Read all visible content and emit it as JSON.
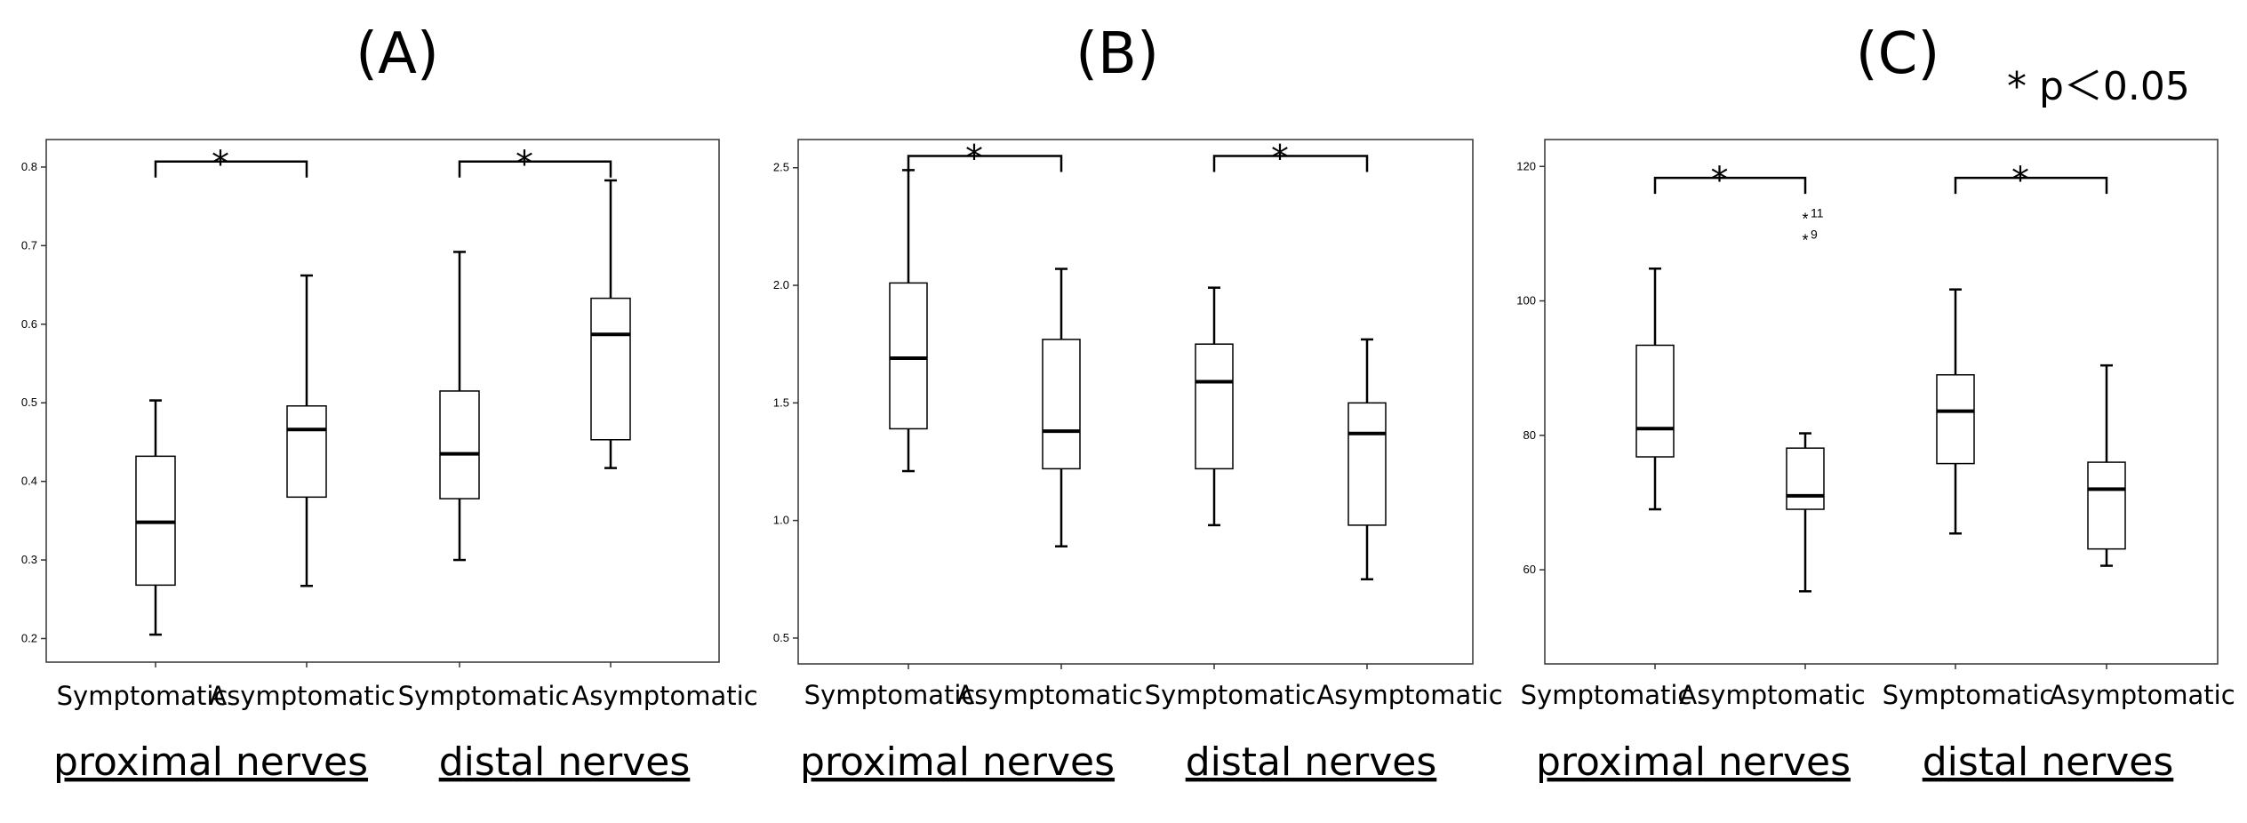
{
  "legend_note": "* p＜0.05",
  "chart_data": [
    {
      "type": "box",
      "title": "(A)",
      "categories": [
        "Symptomatic",
        "Asymptomatic",
        "Symptomatic",
        "Asymptomatic"
      ],
      "groups": [
        "proximal nerves",
        "distal nerves"
      ],
      "ylim": [
        0.17,
        0.835
      ],
      "yticks": [
        0.2,
        0.3,
        0.4,
        0.5,
        0.6,
        0.7,
        0.8
      ],
      "ytick_labels": [
        "0.2",
        "0.3",
        "0.4",
        "0.5",
        "0.6",
        "0.7",
        "0.8"
      ],
      "boxes": [
        {
          "min": 0.205,
          "q1": 0.268,
          "median": 0.348,
          "q3": 0.432,
          "max": 0.503
        },
        {
          "min": 0.267,
          "q1": 0.38,
          "median": 0.466,
          "q3": 0.496,
          "max": 0.662
        },
        {
          "min": 0.3,
          "q1": 0.378,
          "median": 0.435,
          "q3": 0.515,
          "max": 0.692
        },
        {
          "min": 0.417,
          "q1": 0.453,
          "median": 0.587,
          "q3": 0.633,
          "max": 0.783
        }
      ],
      "outliers": [],
      "significance": [
        {
          "from": 0,
          "to": 1,
          "y": 0.807,
          "label": "*"
        },
        {
          "from": 2,
          "to": 3,
          "y": 0.807,
          "label": "*"
        }
      ]
    },
    {
      "type": "box",
      "title": "(B)",
      "categories": [
        "Symptomatic",
        "Asymptomatic",
        "Symptomatic",
        "Asymptomatic"
      ],
      "groups": [
        "proximal nerves",
        "distal nerves"
      ],
      "ylim": [
        0.39,
        2.62
      ],
      "yticks": [
        0.5,
        1.0,
        1.5,
        2.0,
        2.5
      ],
      "ytick_labels": [
        "0.5",
        "1.0",
        "1.5",
        "2.0",
        "2.5"
      ],
      "boxes": [
        {
          "min": 1.21,
          "q1": 1.39,
          "median": 1.69,
          "q3": 2.01,
          "max": 2.49
        },
        {
          "min": 0.89,
          "q1": 1.22,
          "median": 1.38,
          "q3": 1.77,
          "max": 2.07
        },
        {
          "min": 0.98,
          "q1": 1.22,
          "median": 1.59,
          "q3": 1.75,
          "max": 1.99
        },
        {
          "min": 0.75,
          "q1": 0.98,
          "median": 1.37,
          "q3": 1.5,
          "max": 1.77
        }
      ],
      "outliers": [],
      "significance": [
        {
          "from": 0,
          "to": 1,
          "y": 2.55,
          "label": "*"
        },
        {
          "from": 2,
          "to": 3,
          "y": 2.55,
          "label": "*"
        }
      ]
    },
    {
      "type": "box",
      "title": "(C)",
      "categories": [
        "Symptomatic",
        "Asymptomatic",
        "Symptomatic",
        "Asymptomatic"
      ],
      "groups": [
        "proximal nerves",
        "distal nerves"
      ],
      "ylim": [
        46,
        124
      ],
      "yticks": [
        60,
        80,
        100,
        120
      ],
      "ytick_labels": [
        "60",
        "80",
        "100",
        "120"
      ],
      "boxes": [
        {
          "min": 69.0,
          "q1": 76.8,
          "median": 81.0,
          "q3": 93.4,
          "max": 104.8
        },
        {
          "min": 56.8,
          "q1": 69.0,
          "median": 71.0,
          "q3": 78.1,
          "max": 80.3
        },
        {
          "min": 65.4,
          "q1": 75.8,
          "median": 83.6,
          "q3": 89.0,
          "max": 101.7
        },
        {
          "min": 60.6,
          "q1": 63.1,
          "median": 72.0,
          "q3": 76.0,
          "max": 90.4
        }
      ],
      "outliers": [
        {
          "box": 1,
          "value": 112.3,
          "label": "11"
        },
        {
          "box": 1,
          "value": 109.1,
          "label": "9"
        }
      ],
      "significance": [
        {
          "from": 0,
          "to": 1,
          "y": 118.3,
          "label": "*"
        },
        {
          "from": 2,
          "to": 3,
          "y": 118.3,
          "label": "*"
        }
      ]
    }
  ]
}
